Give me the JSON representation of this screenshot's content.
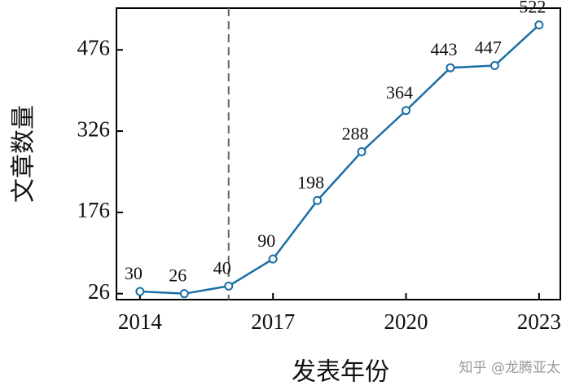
{
  "chart_data": {
    "type": "line",
    "x_label": "发表年份",
    "y_label": "文章数量",
    "x": [
      2014,
      2015,
      2016,
      2017,
      2018,
      2019,
      2020,
      2021,
      2022,
      2023
    ],
    "series": [
      {
        "color": "#1a6ea6",
        "values": [
          30,
          26,
          40,
          90,
          198,
          288,
          364,
          443,
          447,
          522
        ]
      }
    ],
    "xlim": [
      2013.47,
      2023.48
    ],
    "xticks": [
      2014,
      2017,
      2020,
      2023
    ],
    "ylim": [
      15,
      553
    ],
    "yticks": [
      26,
      176,
      326,
      476
    ],
    "reference_line_x": 2016,
    "data_labels": true
  },
  "watermark": "知乎 @龙腾亚太"
}
